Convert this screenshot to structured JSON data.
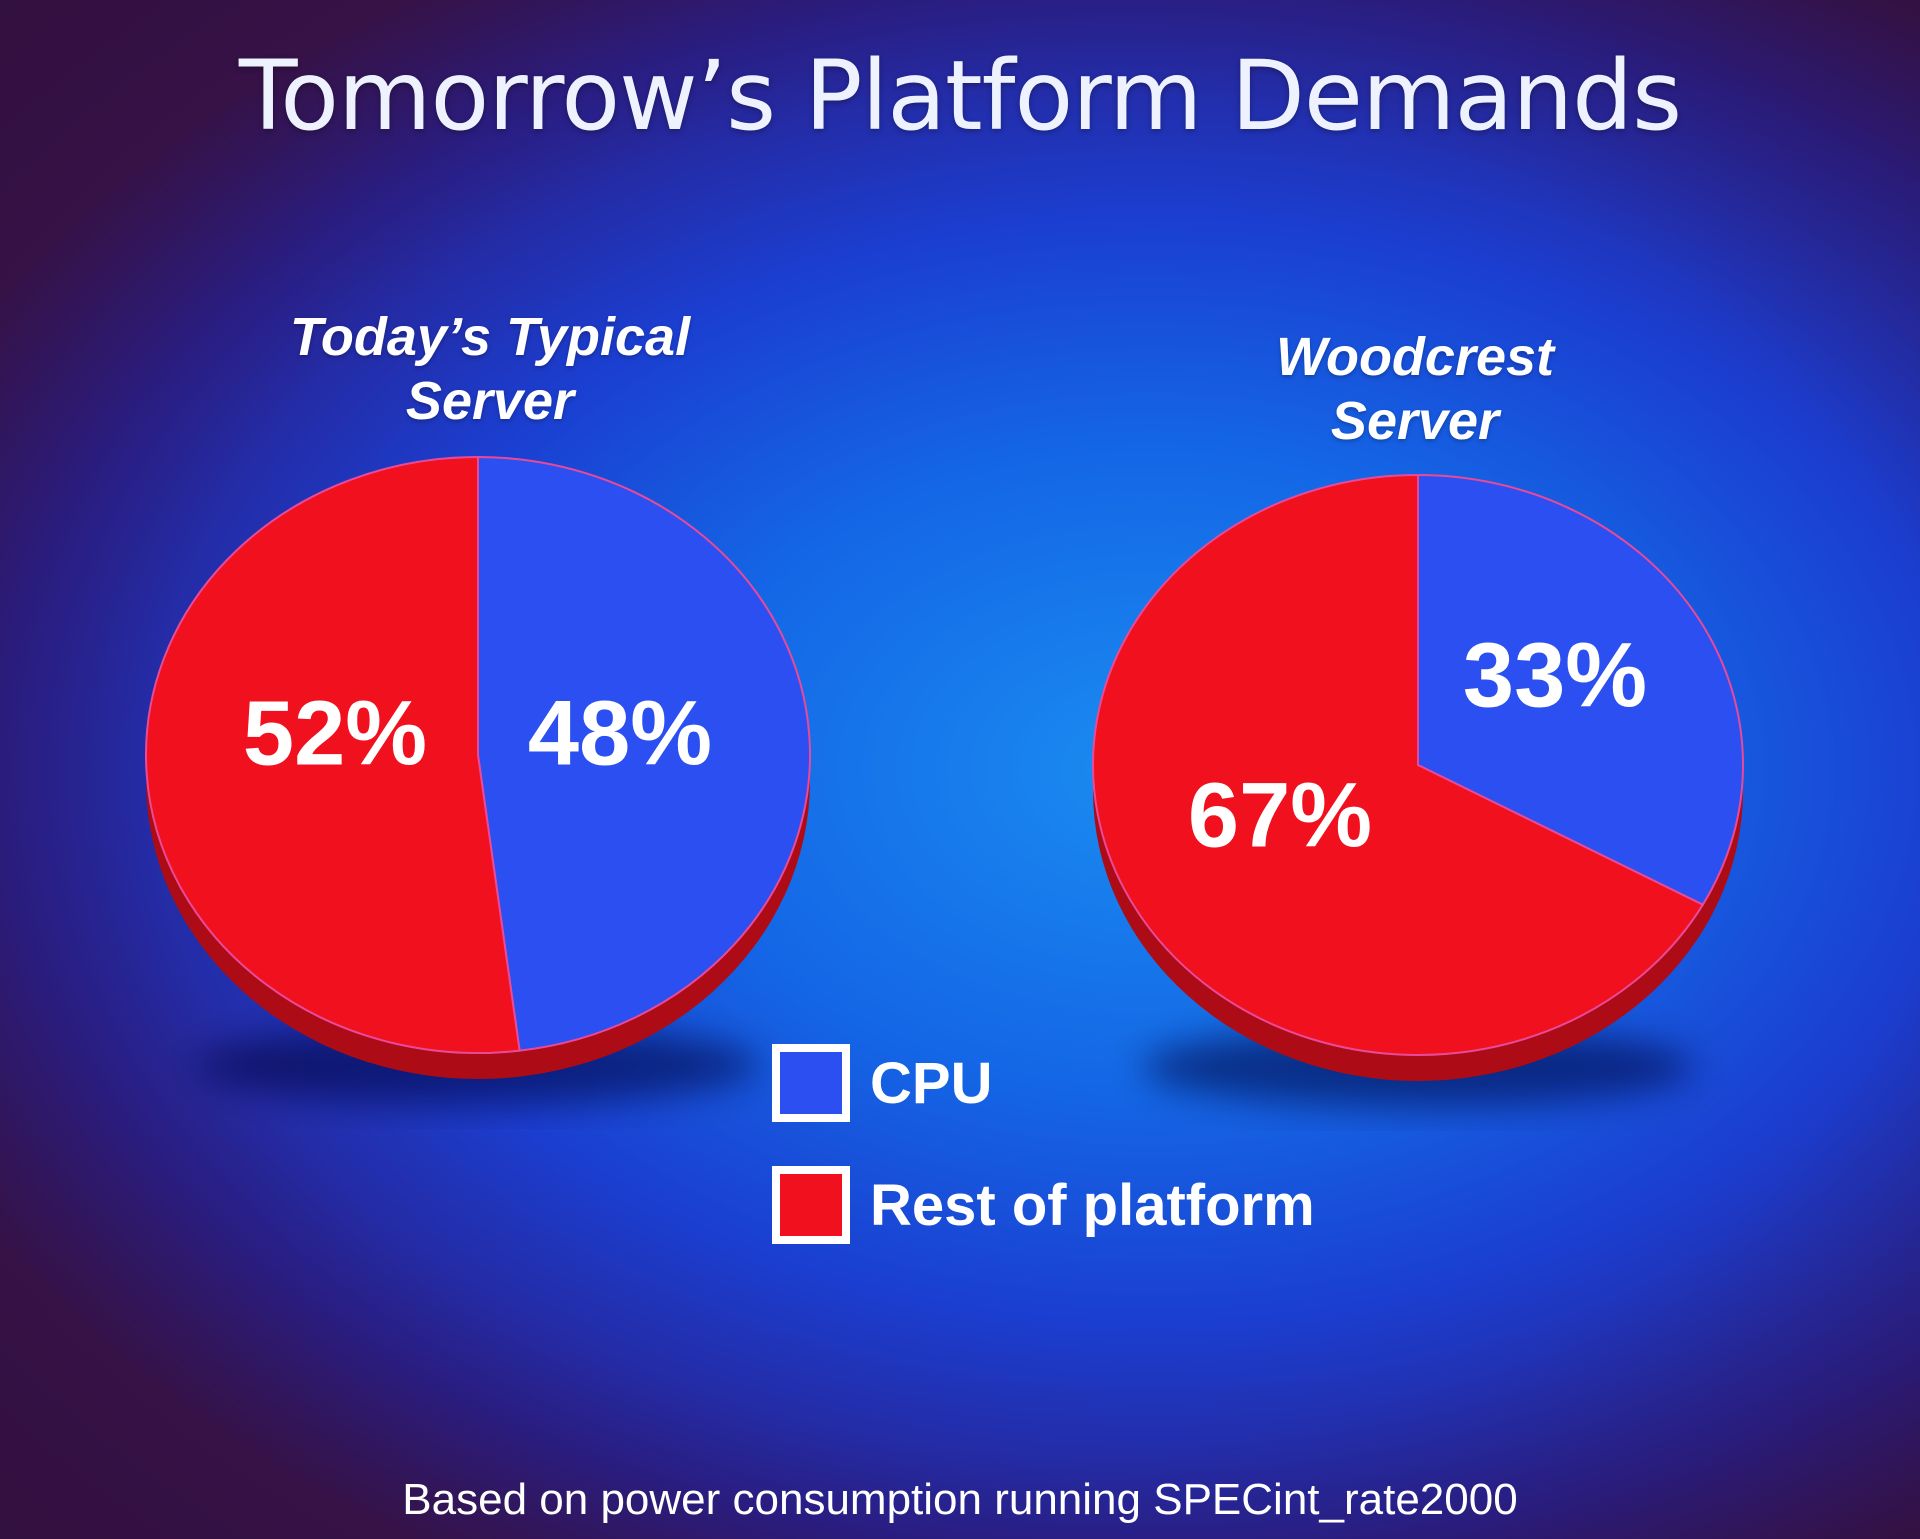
{
  "title": "Tomorrow’s Platform Demands",
  "colors": {
    "cpu": "#2b4ff0",
    "rest": "#f0101e",
    "background": "#1466e6"
  },
  "legend": [
    {
      "label": "CPU",
      "color": "#2b4ff0"
    },
    {
      "label": "Rest of platform",
      "color": "#f0101e"
    }
  ],
  "footnote": "Based on power consumption running SPECint_rate2000",
  "chart_data": [
    {
      "type": "pie",
      "title_lines": [
        "Today’s Typical",
        "Server"
      ],
      "slices": [
        {
          "name": "CPU",
          "value": 48,
          "label": "48%"
        },
        {
          "name": "Rest of platform",
          "value": 52,
          "label": "52%"
        }
      ]
    },
    {
      "type": "pie",
      "title_lines": [
        "Woodcrest",
        "Server"
      ],
      "slices": [
        {
          "name": "CPU",
          "value": 33,
          "label": "33%"
        },
        {
          "name": "Rest of platform",
          "value": 67,
          "label": "67%"
        }
      ]
    }
  ]
}
